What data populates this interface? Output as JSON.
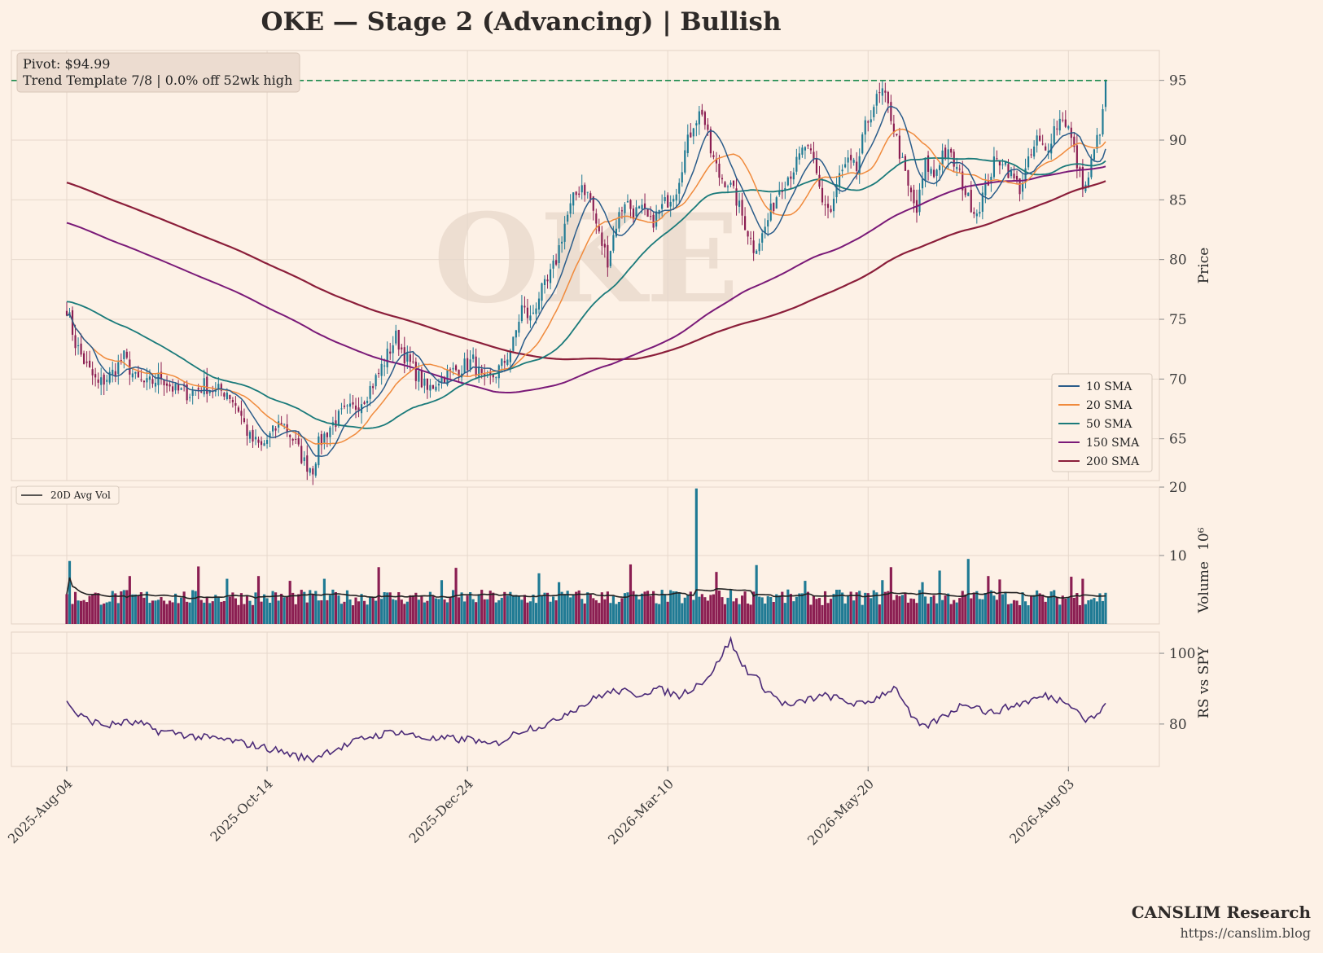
{
  "chart_data": {
    "type": "candlestick",
    "title": "OKE  —  Stage 2 (Advancing)  |  Bullish",
    "watermark": "OKE",
    "ticker": "OKE",
    "colors": {
      "up": "#1f7a94",
      "down": "#8b1e52",
      "sma10": "#2a5c8a",
      "sma20": "#f08a3c",
      "sma50": "#1a7a7a",
      "sma150": "#7a1a78",
      "sma200": "#8b1e3a",
      "pivot": "#1b8a4e",
      "rs": "#4b2a78",
      "avgvol": "#222222"
    },
    "price_panel": {
      "ylabel": "Price",
      "ylim": [
        61.5,
        97.5
      ],
      "yticks": [
        65,
        70,
        75,
        80,
        85,
        90,
        95
      ],
      "pivot": 94.99,
      "annotation_lines": [
        "Pivot: $94.99",
        "Trend Template 7/8  |  0.0% off 52wk high"
      ],
      "legend": [
        "10 SMA",
        "20 SMA",
        "50 SMA",
        "150 SMA",
        "200 SMA"
      ],
      "legend_position": "lower-right",
      "close_keypoints": [
        [
          0,
          76
        ],
        [
          3,
          73
        ],
        [
          7,
          71
        ],
        [
          11,
          69.5
        ],
        [
          16,
          70.5
        ],
        [
          20,
          71.8
        ],
        [
          24,
          70
        ],
        [
          28,
          69.5
        ],
        [
          33,
          70.2
        ],
        [
          38,
          69
        ],
        [
          43,
          68.8
        ],
        [
          48,
          69.5
        ],
        [
          52,
          69
        ],
        [
          56,
          69
        ],
        [
          60,
          67.5
        ],
        [
          64,
          65
        ],
        [
          68,
          64.3
        ],
        [
          72,
          65.5
        ],
        [
          75,
          66.5
        ],
        [
          79,
          65
        ],
        [
          83,
          63
        ],
        [
          86,
          62.5
        ],
        [
          88,
          64.5
        ],
        [
          92,
          66
        ],
        [
          96,
          67
        ],
        [
          100,
          67.5
        ],
        [
          104,
          68.5
        ],
        [
          108,
          70
        ],
        [
          112,
          72
        ],
        [
          115,
          73.5
        ],
        [
          118,
          72
        ],
        [
          122,
          70.5
        ],
        [
          126,
          69
        ],
        [
          130,
          70
        ],
        [
          134,
          70.5
        ],
        [
          138,
          71
        ],
        [
          142,
          71.5
        ],
        [
          146,
          69.5
        ],
        [
          150,
          70.5
        ],
        [
          153,
          71.5
        ],
        [
          156,
          73
        ],
        [
          159,
          76
        ],
        [
          162,
          75
        ],
        [
          165,
          77
        ],
        [
          168,
          78
        ],
        [
          171,
          80
        ],
        [
          174,
          83
        ],
        [
          177,
          85
        ],
        [
          180,
          86.3
        ],
        [
          183,
          85
        ],
        [
          186,
          82
        ],
        [
          189,
          80
        ],
        [
          192,
          83
        ],
        [
          195,
          85
        ],
        [
          198,
          84
        ],
        [
          201,
          84
        ],
        [
          204,
          83
        ],
        [
          207,
          84
        ],
        [
          210,
          85
        ],
        [
          213,
          86
        ],
        [
          216,
          89
        ],
        [
          219,
          91.5
        ],
        [
          222,
          92.5
        ],
        [
          225,
          89
        ],
        [
          228,
          87
        ],
        [
          231,
          86.5
        ],
        [
          234,
          85
        ],
        [
          237,
          83
        ],
        [
          240,
          81
        ],
        [
          243,
          82
        ],
        [
          246,
          84
        ],
        [
          249,
          86
        ],
        [
          252,
          87
        ],
        [
          255,
          88
        ],
        [
          258,
          89.5
        ],
        [
          261,
          88
        ],
        [
          264,
          85
        ],
        [
          267,
          84
        ],
        [
          270,
          87
        ],
        [
          273,
          88
        ],
        [
          276,
          87.5
        ],
        [
          279,
          91
        ],
        [
          282,
          93
        ],
        [
          285,
          94
        ],
        [
          288,
          92
        ],
        [
          291,
          89
        ],
        [
          294,
          86
        ],
        [
          297,
          84
        ],
        [
          300,
          88
        ],
        [
          303,
          87
        ],
        [
          306,
          89
        ],
        [
          309,
          88.5
        ],
        [
          312,
          87
        ],
        [
          315,
          85
        ],
        [
          318,
          84
        ],
        [
          321,
          86
        ],
        [
          324,
          88
        ],
        [
          327,
          88.5
        ],
        [
          330,
          87
        ],
        [
          333,
          86
        ],
        [
          336,
          88
        ],
        [
          339,
          90
        ],
        [
          342,
          89
        ],
        [
          345,
          91
        ],
        [
          348,
          92
        ],
        [
          350,
          91
        ],
        [
          352,
          89
        ],
        [
          354,
          87
        ],
        [
          356,
          86
        ],
        [
          358,
          88
        ],
        [
          360,
          90
        ],
        [
          362,
          92
        ],
        [
          363,
          94.99
        ]
      ]
    },
    "volume_panel": {
      "ylabel": "Volume",
      "unit_exponent": "10⁶",
      "ylim": [
        0,
        20
      ],
      "yticks": [
        10,
        20
      ],
      "legend": [
        "20D Avg Vol"
      ],
      "legend_position": "top-left",
      "base_millions": 4.2,
      "spikes": [
        [
          1,
          9.2
        ],
        [
          22,
          7.0
        ],
        [
          46,
          8.4
        ],
        [
          56,
          6.6
        ],
        [
          67,
          7.0
        ],
        [
          78,
          6.3
        ],
        [
          90,
          6.6
        ],
        [
          109,
          8.3
        ],
        [
          131,
          6.4
        ],
        [
          136,
          8.2
        ],
        [
          165,
          7.4
        ],
        [
          172,
          6.1
        ],
        [
          197,
          8.7
        ],
        [
          220,
          19.8
        ],
        [
          227,
          7.6
        ],
        [
          241,
          8.6
        ],
        [
          258,
          6.3
        ],
        [
          285,
          6.4
        ],
        [
          288,
          8.3
        ],
        [
          299,
          6.1
        ],
        [
          305,
          7.8
        ],
        [
          315,
          9.5
        ],
        [
          322,
          7.0
        ],
        [
          326,
          6.5
        ],
        [
          351,
          6.9
        ],
        [
          355,
          6.6
        ]
      ]
    },
    "rs_panel": {
      "ylabel": "RS vs SPY",
      "ylim": [
        68,
        106
      ],
      "yticks": [
        80,
        100
      ],
      "keypoints": [
        [
          0,
          87
        ],
        [
          3,
          83
        ],
        [
          8,
          81
        ],
        [
          14,
          79.5
        ],
        [
          20,
          80.5
        ],
        [
          26,
          80
        ],
        [
          32,
          78
        ],
        [
          38,
          77.5
        ],
        [
          44,
          76.5
        ],
        [
          50,
          76
        ],
        [
          56,
          75.5
        ],
        [
          62,
          74.5
        ],
        [
          68,
          73.5
        ],
        [
          74,
          72.5
        ],
        [
          80,
          71
        ],
        [
          86,
          70
        ],
        [
          90,
          72
        ],
        [
          94,
          73
        ],
        [
          98,
          74
        ],
        [
          102,
          75.5
        ],
        [
          106,
          76.5
        ],
        [
          110,
          77
        ],
        [
          114,
          78
        ],
        [
          118,
          77.5
        ],
        [
          122,
          76.5
        ],
        [
          126,
          76
        ],
        [
          130,
          75.5
        ],
        [
          134,
          76
        ],
        [
          138,
          75.5
        ],
        [
          142,
          76
        ],
        [
          146,
          74
        ],
        [
          150,
          74.5
        ],
        [
          154,
          76
        ],
        [
          158,
          78
        ],
        [
          162,
          79
        ],
        [
          166,
          79.5
        ],
        [
          170,
          80.5
        ],
        [
          174,
          83
        ],
        [
          178,
          84.5
        ],
        [
          182,
          86
        ],
        [
          186,
          88
        ],
        [
          190,
          89
        ],
        [
          194,
          89.5
        ],
        [
          198,
          88
        ],
        [
          202,
          89
        ],
        [
          206,
          90
        ],
        [
          210,
          89
        ],
        [
          214,
          88
        ],
        [
          218,
          90
        ],
        [
          222,
          92
        ],
        [
          226,
          95
        ],
        [
          229,
          100
        ],
        [
          232,
          103.5
        ],
        [
          235,
          98
        ],
        [
          238,
          95
        ],
        [
          241,
          93
        ],
        [
          244,
          90
        ],
        [
          247,
          88
        ],
        [
          250,
          86
        ],
        [
          253,
          85
        ],
        [
          256,
          86
        ],
        [
          259,
          87
        ],
        [
          262,
          87.5
        ],
        [
          266,
          88
        ],
        [
          270,
          87
        ],
        [
          274,
          86
        ],
        [
          278,
          85.5
        ],
        [
          282,
          87
        ],
        [
          286,
          89
        ],
        [
          290,
          90.5
        ],
        [
          293,
          85
        ],
        [
          296,
          81
        ],
        [
          299,
          79
        ],
        [
          302,
          80
        ],
        [
          306,
          82
        ],
        [
          310,
          84
        ],
        [
          314,
          86
        ],
        [
          318,
          85
        ],
        [
          322,
          83
        ],
        [
          326,
          84
        ],
        [
          330,
          85
        ],
        [
          334,
          86
        ],
        [
          338,
          87
        ],
        [
          342,
          88
        ],
        [
          346,
          87
        ],
        [
          350,
          86.5
        ],
        [
          353,
          84
        ],
        [
          356,
          81
        ],
        [
          359,
          82
        ],
        [
          362,
          84
        ],
        [
          363,
          86.5
        ]
      ]
    },
    "x_axis": {
      "type": "date",
      "start": "2025-08-04",
      "end": "2026-08-11",
      "trading_days": 364,
      "ticks": [
        {
          "i": 0,
          "label": "2025-Aug-04"
        },
        {
          "i": 70,
          "label": "2025-Oct-14"
        },
        {
          "i": 140,
          "label": "2025-Dec-24"
        },
        {
          "i": 210,
          "label": "2026-Mar-10"
        },
        {
          "i": 280,
          "label": "2026-May-20"
        },
        {
          "i": 350,
          "label": "2026-Aug-03"
        }
      ]
    },
    "grid": true
  },
  "footer": {
    "brand": "CANSLIM Research",
    "url": "https://canslim.blog"
  }
}
